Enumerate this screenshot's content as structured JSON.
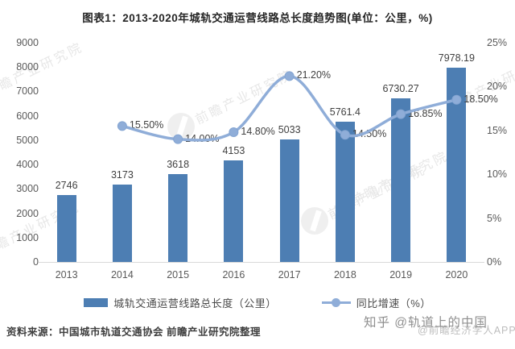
{
  "title": "图表1：2013-2020年城轨交通运营线路总长度趋势图(单位：公里，%)",
  "chart_data": {
    "type": "bar+line combo",
    "categories": [
      "2013",
      "2014",
      "2015",
      "2016",
      "2017",
      "2018",
      "2019",
      "2020"
    ],
    "series": [
      {
        "name": "城轨交通运营线路总长度（公里）",
        "type": "bar",
        "axis": "left",
        "values": [
          2746,
          3173,
          3618,
          4153,
          5033,
          5761.4,
          6730.27,
          7978.19
        ],
        "labels": [
          "2746",
          "3173",
          "3618",
          "4153",
          "5033",
          "5761.4",
          "6730.27",
          "7978.19"
        ]
      },
      {
        "name": "同比增速（%）",
        "type": "line",
        "axis": "right",
        "values": [
          null,
          15.5,
          14.0,
          14.8,
          21.2,
          14.5,
          16.85,
          18.5
        ],
        "labels": [
          null,
          "15.50%",
          "14.00%",
          "14.80%",
          "21.20%",
          "14.50%",
          "16.85%",
          "18.50%"
        ]
      }
    ],
    "left_axis": {
      "min": 0,
      "max": 9000,
      "step": 1000,
      "ticks": [
        "0",
        "1000",
        "2000",
        "3000",
        "4000",
        "5000",
        "6000",
        "7000",
        "8000",
        "9000"
      ]
    },
    "right_axis": {
      "min": 0,
      "max": 25,
      "step": 5,
      "ticks": [
        "0%",
        "5%",
        "10%",
        "15%",
        "20%",
        "25%"
      ]
    },
    "grid": false,
    "legend_position": "bottom"
  },
  "legend": {
    "bar_label": "城轨交通运营线路总长度（公里）",
    "line_label": "同比增速（%）"
  },
  "source": "资料来源：中国城市轨道交通协会 前瞻产业研究院整理",
  "watermarks": {
    "brand_text": "前瞻产业研究院",
    "zhihu_text": "知乎 @轨道上的中国",
    "app_text": "@前瞻经济学人APP"
  },
  "colors": {
    "bar": "#4D7EB3",
    "line": "#8FADD8",
    "dot_stroke": "#84A5D2",
    "axis_text": "#595959",
    "label_text": "#404040",
    "axis_line": "#d9d9d9",
    "watermark": "#e7e7e7"
  }
}
